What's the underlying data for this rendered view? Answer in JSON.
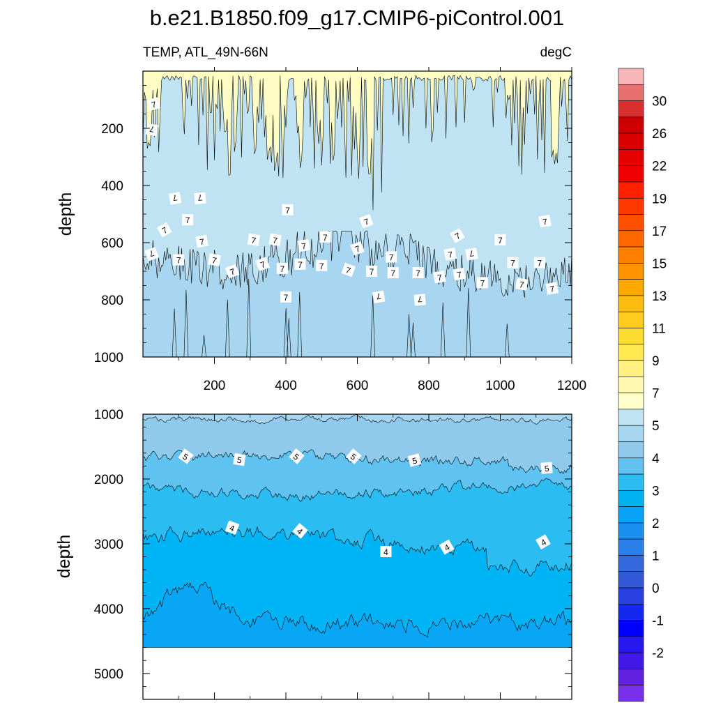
{
  "chart_data": [
    {
      "type": "heatmap",
      "title": "b.e21.B1850.f09_g17.CMIP6-piControl.001",
      "subtitle_left": "TEMP, ATL_49N-66N",
      "subtitle_right": "degC",
      "xlabel": "",
      "ylabel": "depth",
      "xlim": [
        0,
        1200
      ],
      "ylim": [
        1000,
        0
      ],
      "x_ticks": [
        200,
        400,
        600,
        800,
        1000,
        1200
      ],
      "y_ticks": [
        200,
        400,
        600,
        800,
        1000
      ],
      "contour_labels": [
        "7",
        "7",
        "7",
        "7",
        "7",
        "7",
        "7",
        "7",
        "7",
        "7",
        "7",
        "7",
        "7",
        "7",
        "7",
        "7",
        "7",
        "7",
        "7",
        "7",
        "7",
        "7",
        "7",
        "7",
        "7",
        "7",
        "7",
        "7",
        "7",
        "7",
        "7",
        "7",
        "7",
        "7",
        "7",
        "7",
        "7",
        "7",
        "7",
        "7",
        "7",
        "7"
      ],
      "bands": [
        {
          "range": [
            8,
            9
          ],
          "depth_approx": [
            0,
            60
          ]
        },
        {
          "range": [
            7,
            8
          ],
          "depth_approx": [
            60,
            600
          ]
        },
        {
          "range": [
            6,
            7
          ],
          "depth_approx": [
            600,
            1000
          ]
        }
      ]
    },
    {
      "type": "heatmap",
      "xlabel": "",
      "ylabel": "depth",
      "xlim": [
        0,
        1200
      ],
      "ylim": [
        5400,
        1000
      ],
      "y_ticks": [
        1000,
        2000,
        3000,
        4000,
        5000
      ],
      "contour_labels": [
        "5",
        "5",
        "5",
        "5",
        "5",
        "5",
        "4",
        "4",
        "4",
        "4",
        "4"
      ],
      "bands": [
        {
          "range": [
            6,
            7
          ],
          "depth_approx": [
            1000,
            1100
          ]
        },
        {
          "range": [
            5,
            6
          ],
          "depth_approx": [
            1100,
            1700
          ]
        },
        {
          "range": [
            4.5,
            5
          ],
          "depth_approx": [
            1700,
            2200
          ]
        },
        {
          "range": [
            4,
            4.5
          ],
          "depth_approx": [
            2200,
            2800
          ]
        },
        {
          "range": [
            3.5,
            4
          ],
          "depth_approx": [
            2800,
            4100
          ]
        },
        {
          "range": [
            3,
            3.5
          ],
          "depth_approx": [
            4100,
            4600
          ]
        }
      ],
      "missing_below_depth": 4600
    }
  ],
  "colorbar": {
    "labels": [
      "30",
      "26",
      "22",
      "19",
      "17",
      "15",
      "13",
      "11",
      "9",
      "7",
      "5",
      "4",
      "3",
      "2",
      "1",
      "0",
      "-1",
      "-2"
    ],
    "colors_top_to_bottom": [
      "#f8b6b8",
      "#e87070",
      "#d83030",
      "#cc0000",
      "#d80000",
      "#e40000",
      "#f00000",
      "#ff2000",
      "#ff3800",
      "#ff5000",
      "#ff6800",
      "#ff8000",
      "#ff9400",
      "#ffa800",
      "#ffbc10",
      "#ffcc20",
      "#ffdc30",
      "#ffe850",
      "#fff080",
      "#fff8b0",
      "#ffffcc",
      "#bfe3f2",
      "#a8d6f0",
      "#90c9ec",
      "#62c2ef",
      "#2bbcf2",
      "#00b0f0",
      "#0aa2f8",
      "#1890f0",
      "#2880e8",
      "#3468dc",
      "#3458d8",
      "#2840e0",
      "#1428f0",
      "#0000ff",
      "#2818f0",
      "#4018e8",
      "#6020e0",
      "#7830e8"
    ]
  },
  "palette": {
    "warm_top": "#fffcc4",
    "band_7_8": "#bfe3f2",
    "band_6_7": "#a8d6f0",
    "band_5_6": "#8fc9ec",
    "band_45_5": "#5fc2f0",
    "band_4_45": "#2bbcf2",
    "band_35_4": "#00b4f5",
    "band_3_35": "#0aa6f6"
  }
}
